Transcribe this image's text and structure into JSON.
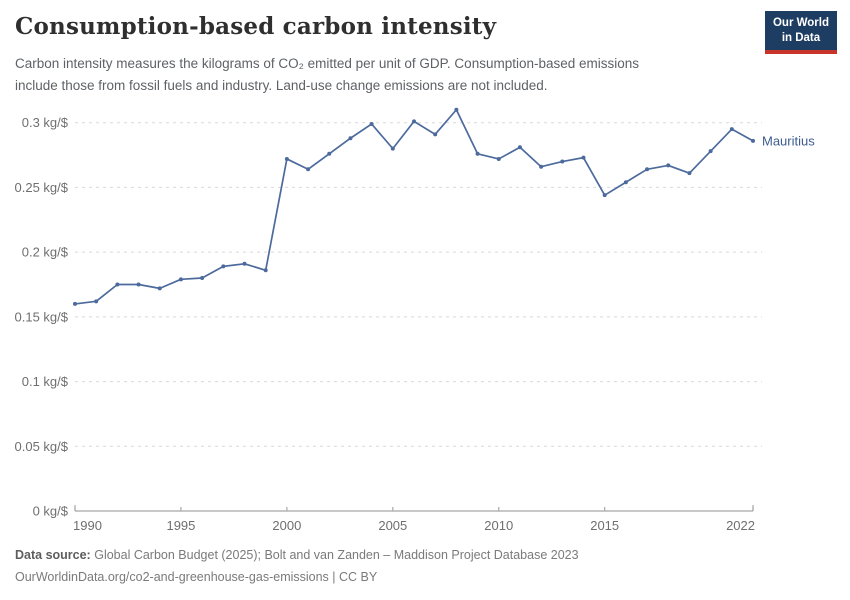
{
  "header": {
    "logo": {
      "line1": "Our World",
      "line2": "in Data",
      "bg_color": "#1d3d63",
      "accent_color": "#c8342c"
    }
  },
  "chart_data": {
    "type": "line",
    "title": "Consumption-based carbon intensity",
    "subtitle_lines": [
      "Carbon intensity measures the kilograms of CO₂ emitted per unit of GDP. Consumption-based emissions",
      "include those from fossil fuels and industry. Land-use change emissions are not included."
    ],
    "xlabel": "",
    "ylabel": "kg/$",
    "y_unit": " kg/$",
    "xlim": [
      1990,
      2022
    ],
    "ylim": [
      0,
      0.31
    ],
    "grid": "horizontal-dashed",
    "legend_position": "line-end-label",
    "x_ticks": [
      1990,
      1995,
      2000,
      2005,
      2010,
      2015,
      2022
    ],
    "y_ticks": [
      0,
      0.05,
      0.1,
      0.15,
      0.2,
      0.25,
      0.3
    ],
    "series": [
      {
        "name": "Mauritius",
        "color": "#4c6a9c",
        "label_color": "#3d5c8f",
        "x": [
          1990,
          1991,
          1992,
          1993,
          1994,
          1995,
          1996,
          1997,
          1998,
          1999,
          2000,
          2001,
          2002,
          2003,
          2004,
          2005,
          2006,
          2007,
          2008,
          2009,
          2010,
          2011,
          2012,
          2013,
          2014,
          2015,
          2016,
          2017,
          2018,
          2019,
          2020,
          2021,
          2022
        ],
        "values": [
          0.16,
          0.162,
          0.175,
          0.175,
          0.172,
          0.179,
          0.18,
          0.189,
          0.191,
          0.186,
          0.272,
          0.264,
          0.276,
          0.288,
          0.299,
          0.28,
          0.301,
          0.291,
          0.31,
          0.276,
          0.272,
          0.281,
          0.266,
          0.27,
          0.273,
          0.244,
          0.254,
          0.264,
          0.267,
          0.261,
          0.278,
          0.295,
          0.286
        ]
      }
    ]
  },
  "footer": {
    "source_label": "Data source:",
    "source_text": "Global Carbon Budget (2025); Bolt and van Zanden – Maddison Project Database 2023",
    "link_text": "OurWorldinData.org/co2-and-greenhouse-gas-emissions",
    "separator": "|",
    "license": "CC BY"
  }
}
